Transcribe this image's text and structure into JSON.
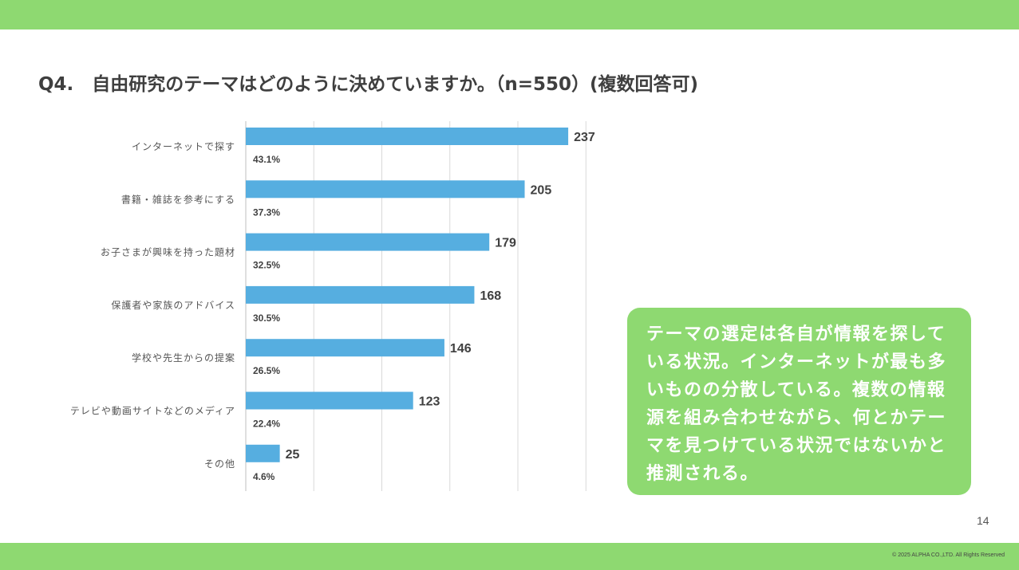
{
  "title": "Q4.　自由研究のテーマはどのように決めていますか。（n=550）(複数回答可)",
  "chart_data": {
    "type": "bar",
    "orientation": "horizontal",
    "categories": [
      "インターネットで探す",
      "書籍・雑誌を参考にする",
      "お子さまが興味を持った題材",
      "保護者や家族のアドバイス",
      "学校や先生からの提案",
      "テレビや動画サイトなどのメディア",
      "その他"
    ],
    "values": [
      237,
      205,
      179,
      168,
      146,
      123,
      25
    ],
    "percent_labels": [
      "43.1%",
      "37.3%",
      "32.5%",
      "30.5%",
      "26.5%",
      "22.4%",
      "4.6%"
    ],
    "xlim": [
      0,
      250
    ],
    "grid": true,
    "bar_color": "#56aee0"
  },
  "callout": {
    "text": "テーマの選定は各自が情報を探している状況。インターネットが最も多いものの分散している。複数の情報源を組み合わせながら、何とかテーマを見つけている状況ではないかと推測される。"
  },
  "footer": {
    "page_number": "14",
    "copyright": "© 2025 ALPHA CO.,LTD. All Rights Reserved"
  },
  "colors": {
    "accent": "#8ed971",
    "bar": "#56aee0"
  }
}
